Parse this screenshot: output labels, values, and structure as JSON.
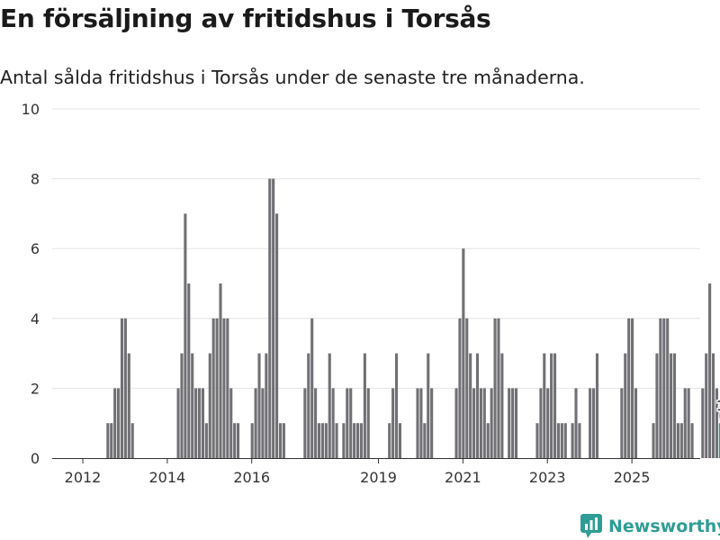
{
  "title": "En försäljning av fritidshus i Torsås",
  "subtitle": "Antal sålda fritidshus i Torsås under de senaste tre månaderna.",
  "brand": {
    "name": "Newsworthy",
    "icon": "chart-bubble-icon"
  },
  "colors": {
    "bar": "#717074",
    "highlight": "#2a9d8f",
    "grid": "#e4e4e4",
    "axis": "#333333",
    "brand": "#2f9d95"
  },
  "chart_data": {
    "type": "bar",
    "title": "En försäljning av fritidshus i Torsås",
    "xlabel": "",
    "ylabel": "",
    "ylim": [
      0,
      10
    ],
    "y_ticks": [
      0,
      2,
      4,
      6,
      8,
      10
    ],
    "x_tick_labels": [
      {
        "label": "2012",
        "year": 2012
      },
      {
        "label": "2014",
        "year": 2014
      },
      {
        "label": "2016",
        "year": 2016
      },
      {
        "label": "2019",
        "year": 2019
      },
      {
        "label": "2021",
        "year": 2021
      },
      {
        "label": "2023",
        "year": 2023
      },
      {
        "label": "2025",
        "year": 2025
      }
    ],
    "start_month": "2012-01",
    "values": [
      0,
      0,
      0,
      0,
      0,
      0,
      0,
      0,
      0,
      0,
      0,
      0,
      0,
      1,
      1,
      2,
      2,
      4,
      4,
      3,
      1,
      0,
      0,
      0,
      0,
      0,
      0,
      0,
      0,
      0,
      0,
      0,
      0,
      2,
      3,
      7,
      5,
      3,
      2,
      2,
      2,
      1,
      3,
      4,
      4,
      5,
      4,
      4,
      2,
      1,
      1,
      0,
      0,
      0,
      1,
      2,
      3,
      2,
      3,
      8,
      8,
      7,
      1,
      1,
      0,
      0,
      0,
      0,
      0,
      2,
      3,
      4,
      2,
      1,
      1,
      1,
      3,
      2,
      1,
      0,
      1,
      2,
      2,
      1,
      1,
      1,
      3,
      2,
      0,
      0,
      0,
      0,
      0,
      1,
      2,
      3,
      1,
      0,
      0,
      0,
      0,
      2,
      2,
      1,
      3,
      2,
      0,
      0,
      0,
      0,
      0,
      0,
      2,
      4,
      6,
      4,
      3,
      2,
      3,
      2,
      2,
      1,
      2,
      4,
      4,
      3,
      0,
      2,
      2,
      2,
      0,
      0,
      0,
      0,
      0,
      1,
      2,
      3,
      2,
      3,
      3,
      1,
      1,
      1,
      0,
      1,
      2,
      1,
      0,
      0,
      2,
      2,
      3,
      0,
      0,
      0,
      0,
      0,
      0,
      2,
      3,
      4,
      4,
      2,
      0,
      0,
      0,
      0,
      1,
      3,
      4,
      4,
      4,
      3,
      3,
      1,
      1,
      2,
      2,
      1,
      0,
      0,
      2,
      3,
      5,
      3,
      2,
      1
    ],
    "highlight_last": true,
    "last_value_label": "1"
  }
}
